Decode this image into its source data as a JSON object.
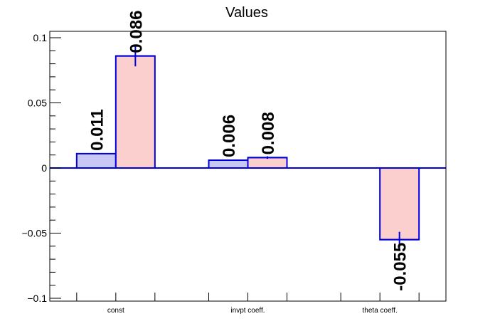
{
  "chart_data": {
    "type": "bar",
    "title": "Values",
    "xlabel": "",
    "ylabel": "",
    "categories": [
      "const",
      "invpt coeff.",
      "theta coeff."
    ],
    "series": [
      {
        "values": [
          0.011,
          0.006,
          0.0
        ],
        "errors": [
          0.0,
          0.0,
          0.0
        ],
        "color": "#c8c8f5"
      },
      {
        "values": [
          0.086,
          0.008,
          -0.055
        ],
        "errors": [
          0.008,
          0.001,
          0.006
        ],
        "color": "#fccfcf"
      }
    ],
    "data_labels": [
      [
        "0.011",
        "0.006",
        ""
      ],
      [
        "0.086",
        "0.008",
        "-0.055"
      ]
    ],
    "ylim": [
      -0.1,
      0.1
    ],
    "y_ticks": [
      {
        "value": 0.1,
        "label": "0.1"
      },
      {
        "value": 0.05,
        "label": "0.05"
      },
      {
        "value": 0,
        "label": "0"
      },
      {
        "value": -0.05,
        "label": "−0.05"
      },
      {
        "value": -0.1,
        "label": "−0.1"
      }
    ],
    "grid": false,
    "outline_color": "#0000dd"
  }
}
